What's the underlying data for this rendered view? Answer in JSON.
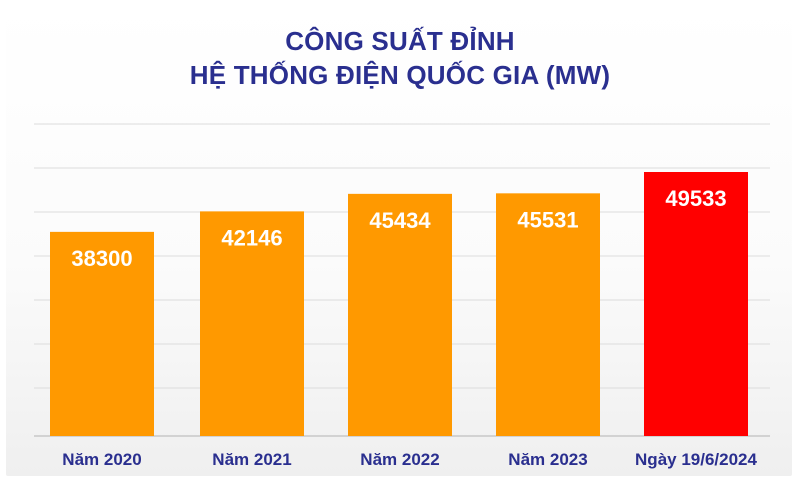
{
  "chart_data": {
    "type": "bar",
    "title_lines": [
      "CÔNG SUẤT ĐỈNH",
      "HỆ THỐNG ĐIỆN QUỐC GIA (MW)"
    ],
    "categories": [
      "Năm 2020",
      "Năm 2021",
      "Năm 2022",
      "Năm 2023",
      "Ngày 19/6/2024"
    ],
    "values": [
      38300,
      42146,
      45434,
      45531,
      49533
    ],
    "value_labels": [
      "38300",
      "42146",
      "45434",
      "45531",
      "49533"
    ],
    "bar_colors": [
      "#ff9900",
      "#ff9900",
      "#ff9900",
      "#ff9900",
      "#ff0000"
    ],
    "grid": true,
    "legend": "none"
  }
}
